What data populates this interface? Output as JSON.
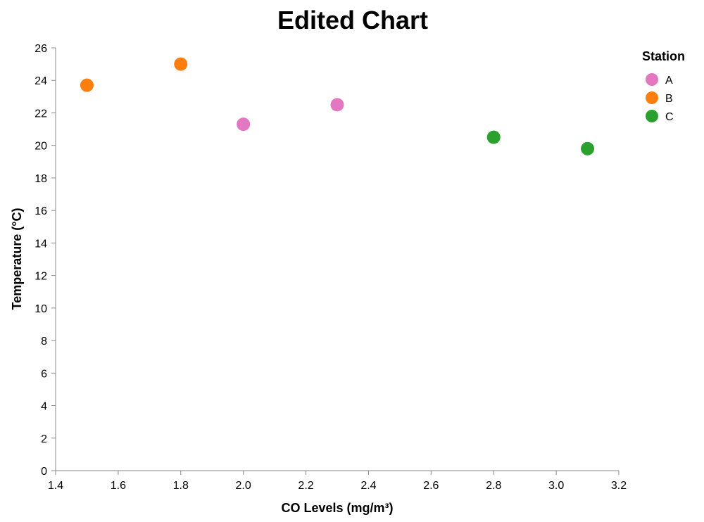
{
  "chart_data": {
    "type": "scatter",
    "title": "Edited Chart",
    "xlabel": "CO Levels (mg/m³)",
    "ylabel": "Temperature (°C)",
    "xlim": [
      1.4,
      3.2
    ],
    "ylim": [
      0,
      26
    ],
    "x_ticks": [
      "1.4",
      "1.6",
      "1.8",
      "2.0",
      "2.2",
      "2.4",
      "2.6",
      "2.8",
      "3.0",
      "3.2"
    ],
    "y_ticks": [
      "0",
      "2",
      "4",
      "6",
      "8",
      "10",
      "12",
      "14",
      "16",
      "18",
      "20",
      "22",
      "24",
      "26"
    ],
    "grid": false,
    "legend": {
      "title": "Station",
      "placement": "top-right",
      "entries": [
        {
          "label": "A",
          "color": "#e377c2"
        },
        {
          "label": "B",
          "color": "#ff7f0e"
        },
        {
          "label": "C",
          "color": "#2ca02c"
        }
      ]
    },
    "series": [
      {
        "name": "A",
        "color": "#e377c2",
        "points": [
          {
            "x": 2.0,
            "y": 21.3
          },
          {
            "x": 2.3,
            "y": 22.5
          }
        ]
      },
      {
        "name": "B",
        "color": "#ff7f0e",
        "points": [
          {
            "x": 1.5,
            "y": 23.7
          },
          {
            "x": 1.8,
            "y": 25.0
          }
        ]
      },
      {
        "name": "C",
        "color": "#2ca02c",
        "points": [
          {
            "x": 2.8,
            "y": 20.5
          },
          {
            "x": 3.1,
            "y": 19.8
          }
        ]
      }
    ]
  }
}
